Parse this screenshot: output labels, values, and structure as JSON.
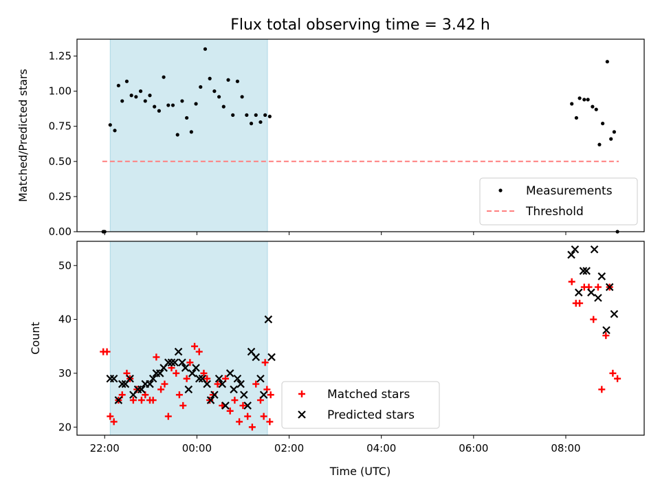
{
  "chart_data": [
    {
      "type": "scatter",
      "title": "Flux total observing time = 3.42 h",
      "xlabel": "",
      "ylabel": "Matched/Predicted stars",
      "ylim": [
        0,
        1.37
      ],
      "yticks": [
        "0.00",
        "0.25",
        "0.50",
        "0.75",
        "1.00",
        "1.25"
      ],
      "x_unit": "hours since 22:00 UTC",
      "xlim": [
        -0.6,
        11.7
      ],
      "shaded_span": [
        0.12,
        3.53
      ],
      "shaded_color": "#add8e6",
      "threshold": {
        "name": "Threshold",
        "value": 0.5,
        "x_range": [
          -0.05,
          11.15
        ],
        "color": "#ff7f7f"
      },
      "series": [
        {
          "name": "Measurements",
          "color": "#000000",
          "marker": "dot",
          "x": [
            -0.03,
            0.0,
            0.12,
            0.22,
            0.3,
            0.38,
            0.48,
            0.58,
            0.68,
            0.78,
            0.88,
            0.98,
            1.08,
            1.18,
            1.28,
            1.38,
            1.48,
            1.58,
            1.68,
            1.78,
            1.88,
            1.98,
            2.08,
            2.18,
            2.28,
            2.38,
            2.48,
            2.58,
            2.68,
            2.78,
            2.88,
            2.98,
            3.08,
            3.18,
            3.28,
            3.38,
            3.48,
            3.58,
            10.13,
            10.23,
            10.3,
            10.4,
            10.48,
            10.58,
            10.66,
            10.73,
            10.8,
            10.9,
            10.98,
            11.05,
            11.12
          ],
          "y": [
            0.0,
            0.0,
            0.76,
            0.72,
            1.04,
            0.93,
            1.07,
            0.97,
            0.96,
            1.0,
            0.93,
            0.97,
            0.89,
            0.86,
            1.1,
            0.9,
            0.9,
            0.69,
            0.93,
            0.81,
            0.71,
            0.91,
            1.03,
            1.3,
            1.09,
            1.0,
            0.96,
            0.89,
            1.08,
            0.83,
            1.07,
            0.96,
            0.83,
            0.77,
            0.83,
            0.78,
            0.83,
            0.82,
            0.91,
            0.81,
            0.95,
            0.94,
            0.94,
            0.89,
            0.87,
            0.62,
            0.77,
            1.21,
            0.66,
            0.71,
            0.0
          ],
          "note_ignore": ""
        }
      ],
      "legend": {
        "placement": "lower-right",
        "items": [
          "Measurements",
          "Threshold"
        ]
      }
    },
    {
      "type": "scatter",
      "title": "",
      "xlabel": "Time (UTC)",
      "ylabel": "Count",
      "ylim": [
        18.5,
        54.5
      ],
      "yticks": [
        "20",
        "30",
        "40",
        "50"
      ],
      "xticks": [
        "22:00",
        "00:00",
        "02:00",
        "04:00",
        "06:00",
        "08:00"
      ],
      "legend": {
        "placement": "lower-center",
        "items": [
          "Matched stars",
          "Predicted stars"
        ]
      },
      "series": [
        {
          "name": "Matched stars",
          "color": "#ff0000",
          "marker": "plus",
          "x": [
            -0.03,
            0.05,
            0.12,
            0.2,
            0.3,
            0.38,
            0.48,
            0.55,
            0.62,
            0.7,
            0.8,
            0.88,
            0.98,
            1.05,
            1.12,
            1.22,
            1.3,
            1.38,
            1.45,
            1.55,
            1.62,
            1.7,
            1.78,
            1.85,
            1.95,
            2.05,
            2.15,
            2.22,
            2.28,
            2.35,
            2.45,
            2.55,
            2.62,
            2.72,
            2.82,
            2.92,
            3.0,
            3.1,
            3.2,
            3.28,
            3.38,
            3.48,
            3.58,
            10.13,
            10.22,
            10.3,
            10.4,
            10.5,
            10.6,
            10.7,
            10.78,
            10.87,
            10.95,
            11.02,
            11.12
          ],
          "y": [
            34,
            34,
            22,
            21,
            25,
            26,
            30,
            29,
            25,
            27,
            25,
            26,
            25,
            25,
            33,
            27,
            28,
            22,
            31,
            30,
            26,
            24,
            29,
            32,
            35,
            34,
            30,
            29,
            25,
            26,
            28,
            24,
            29,
            23,
            25,
            21,
            24,
            22,
            20,
            28,
            25,
            32,
            21,
            47,
            43,
            43,
            46,
            46,
            40,
            46,
            27,
            37,
            46,
            30,
            29
          ],
          "extra_x": [
            3.45,
            3.52,
            3.6
          ],
          "extra_y": [
            22,
            27,
            26
          ]
        },
        {
          "name": "Predicted stars",
          "color": "#000000",
          "marker": "x",
          "x": [
            0.12,
            0.2,
            0.3,
            0.38,
            0.45,
            0.55,
            0.62,
            0.72,
            0.8,
            0.88,
            0.98,
            1.05,
            1.12,
            1.2,
            1.28,
            1.38,
            1.45,
            1.52,
            1.6,
            1.68,
            1.75,
            1.82,
            1.9,
            1.98,
            2.05,
            2.12,
            2.22,
            2.3,
            2.38,
            2.48,
            2.55,
            2.62,
            2.72,
            2.8,
            2.88,
            2.95,
            3.02,
            3.1,
            3.18,
            3.28,
            3.38,
            3.45,
            3.55,
            10.12,
            10.2,
            10.28,
            10.38,
            10.45,
            10.55,
            10.62,
            10.7,
            10.78,
            10.88,
            10.95,
            11.05
          ],
          "y": [
            29,
            29,
            25,
            28,
            28,
            29,
            26,
            27,
            27,
            28,
            28,
            29,
            30,
            30,
            31,
            32,
            32,
            32,
            34,
            32,
            31,
            27,
            30,
            31,
            29,
            29,
            28,
            25,
            26,
            29,
            28,
            24,
            30,
            27,
            29,
            28,
            26,
            24,
            34,
            33,
            29,
            26,
            40,
            52,
            53,
            45,
            49,
            49,
            45,
            53,
            44,
            48,
            38,
            46,
            41
          ],
          "extra_x": [
            3.62
          ],
          "extra_y": [
            33
          ]
        }
      ]
    }
  ]
}
